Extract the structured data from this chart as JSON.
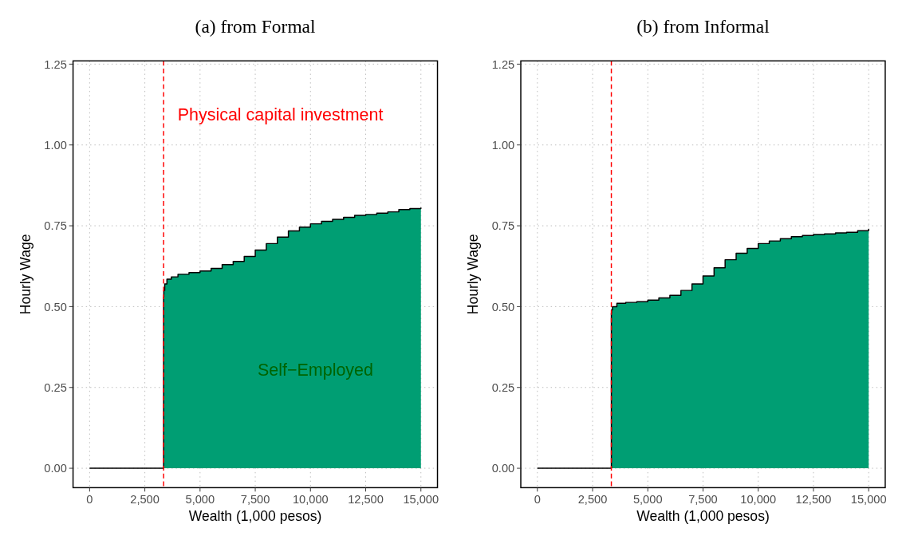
{
  "chart_data": [
    {
      "type": "area",
      "title": "(a) from Formal",
      "xlabel": "Wealth (1,000 pesos)",
      "ylabel": "Hourly Wage",
      "xlim": [
        -750,
        15750
      ],
      "ylim": [
        -0.06,
        1.26
      ],
      "xticks": [
        0,
        {
          "value": 2500,
          "label": "2,500"
        },
        {
          "value": 5000,
          "label": "5,000"
        },
        {
          "value": 7500,
          "label": "7,500"
        },
        {
          "value": 10000,
          "label": "10,000"
        },
        {
          "value": 12500,
          "label": "12,500"
        },
        {
          "value": 15000,
          "label": "15,000"
        }
      ],
      "yticks": [
        {
          "value": 0,
          "label": "0.00"
        },
        {
          "value": 0.25,
          "label": "0.25"
        },
        {
          "value": 0.5,
          "label": "0.50"
        },
        {
          "value": 0.75,
          "label": "0.75"
        },
        {
          "value": 1,
          "label": "1.00"
        },
        {
          "value": 1.25,
          "label": "1.25"
        }
      ],
      "grid": true,
      "series": [
        {
          "color": "#009e73",
          "x": [
            0,
            3350,
            3360,
            3400,
            3500,
            3700,
            4000,
            4500,
            5000,
            5500,
            6000,
            6500,
            7000,
            7500,
            8000,
            8500,
            9000,
            9500,
            10000,
            10500,
            11000,
            11500,
            12000,
            12500,
            13000,
            13500,
            14000,
            14500,
            15000
          ],
          "values": [
            0,
            0.53,
            0.55,
            0.57,
            0.585,
            0.592,
            0.6,
            0.605,
            0.61,
            0.618,
            0.63,
            0.64,
            0.655,
            0.675,
            0.695,
            0.715,
            0.734,
            0.746,
            0.756,
            0.764,
            0.77,
            0.776,
            0.782,
            0.785,
            0.789,
            0.793,
            0.8,
            0.803,
            0.806
          ]
        }
      ],
      "ref_lines": [
        {
          "axis": "x",
          "value": 3350,
          "label": "Physical capital investment",
          "color": "#ff0000",
          "line_style": "dashed"
        }
      ],
      "annotations": [
        "Self−Employed"
      ]
    },
    {
      "type": "area",
      "title": "(b) from Informal",
      "xlabel": "Wealth (1,000 pesos)",
      "ylabel": "Hourly Wage",
      "xlim": [
        -750,
        15750
      ],
      "ylim": [
        -0.06,
        1.26
      ],
      "xticks": [
        0,
        {
          "value": 2500,
          "label": "2,500"
        },
        {
          "value": 5000,
          "label": "5,000"
        },
        {
          "value": 7500,
          "label": "7,500"
        },
        {
          "value": 10000,
          "label": "10,000"
        },
        {
          "value": 12500,
          "label": "12,500"
        },
        {
          "value": 15000,
          "label": "15,000"
        }
      ],
      "yticks": [
        {
          "value": 0,
          "label": "0.00"
        },
        {
          "value": 0.25,
          "label": "0.25"
        },
        {
          "value": 0.5,
          "label": "0.50"
        },
        {
          "value": 0.75,
          "label": "0.75"
        },
        {
          "value": 1,
          "label": "1.00"
        },
        {
          "value": 1.25,
          "label": "1.25"
        }
      ],
      "grid": true,
      "series": [
        {
          "color": "#009e73",
          "x": [
            0,
            3350,
            3360,
            3400,
            3600,
            4000,
            4500,
            5000,
            5500,
            6000,
            6500,
            7000,
            7500,
            8000,
            8500,
            9000,
            9500,
            10000,
            10500,
            11000,
            11500,
            12000,
            12500,
            13000,
            13500,
            14000,
            14500,
            15000
          ],
          "values": [
            0,
            0.48,
            0.49,
            0.5,
            0.51,
            0.513,
            0.515,
            0.52,
            0.527,
            0.535,
            0.55,
            0.57,
            0.595,
            0.62,
            0.645,
            0.665,
            0.68,
            0.695,
            0.703,
            0.71,
            0.716,
            0.72,
            0.723,
            0.725,
            0.728,
            0.73,
            0.735,
            0.74
          ]
        }
      ],
      "ref_lines": [
        {
          "axis": "x",
          "value": 3350,
          "color": "#ff0000",
          "line_style": "dashed"
        }
      ]
    }
  ]
}
